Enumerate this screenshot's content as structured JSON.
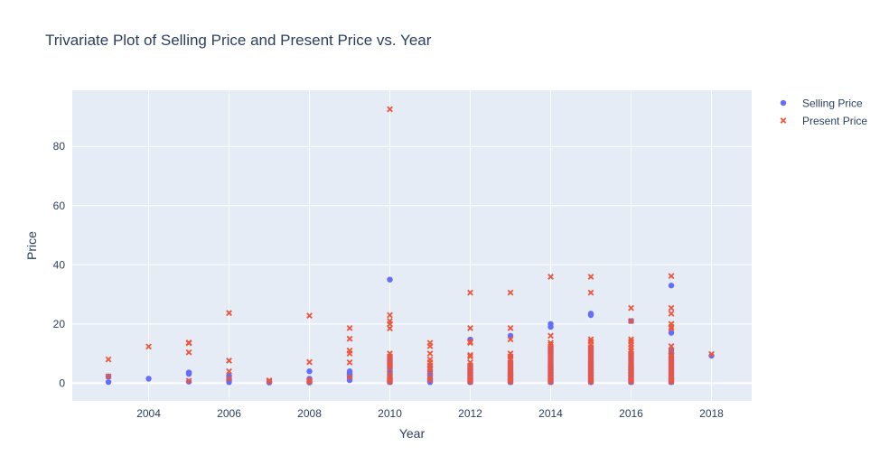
{
  "chart_data": {
    "type": "scatter",
    "title": "Trivariate Plot of Selling Price and Present Price vs. Year",
    "xlabel": "Year",
    "ylabel": "Price",
    "xlim": [
      2002.1,
      2019.0
    ],
    "ylim": [
      -6,
      99
    ],
    "xticks": [
      2004,
      2006,
      2008,
      2010,
      2012,
      2014,
      2016,
      2018
    ],
    "yticks": [
      0,
      20,
      40,
      60,
      80
    ],
    "grid": true,
    "legend_position": "top-right",
    "colors": {
      "plot_bg": "#e5ecf6",
      "grid": "#ffffff",
      "selling": "#636efa",
      "present": "#ef553b"
    },
    "series": [
      {
        "name": "Selling Price",
        "marker": "circle",
        "points": [
          [
            2003,
            0.35
          ],
          [
            2003,
            2.25
          ],
          [
            2004,
            1.5
          ],
          [
            2005,
            0.5
          ],
          [
            2005,
            3.1
          ],
          [
            2005,
            3.5
          ],
          [
            2005,
            3.6
          ],
          [
            2006,
            0.3
          ],
          [
            2006,
            1.0
          ],
          [
            2006,
            1.5
          ],
          [
            2006,
            2.5
          ],
          [
            2007,
            0.2
          ],
          [
            2007,
            0.5
          ],
          [
            2008,
            0.2
          ],
          [
            2008,
            0.5
          ],
          [
            2008,
            1.0
          ],
          [
            2008,
            1.5
          ],
          [
            2008,
            4.0
          ],
          [
            2009,
            1.0
          ],
          [
            2009,
            2.0
          ],
          [
            2009,
            2.5
          ],
          [
            2009,
            3.0
          ],
          [
            2009,
            3.5
          ],
          [
            2009,
            4.0
          ],
          [
            2010,
            0.3
          ],
          [
            2010,
            0.5
          ],
          [
            2010,
            1.0
          ],
          [
            2010,
            1.5
          ],
          [
            2010,
            2.0
          ],
          [
            2010,
            3.0
          ],
          [
            2010,
            4.0
          ],
          [
            2010,
            5.0
          ],
          [
            2010,
            6.0
          ],
          [
            2010,
            7.0
          ],
          [
            2010,
            8.0
          ],
          [
            2010,
            9.0
          ],
          [
            2010,
            35.0
          ],
          [
            2011,
            0.3
          ],
          [
            2011,
            0.5
          ],
          [
            2011,
            1.0
          ],
          [
            2011,
            1.5
          ],
          [
            2011,
            2.5
          ],
          [
            2011,
            3.0
          ],
          [
            2011,
            4.0
          ],
          [
            2011,
            5.5
          ],
          [
            2012,
            0.3
          ],
          [
            2012,
            0.5
          ],
          [
            2012,
            1.0
          ],
          [
            2012,
            1.5
          ],
          [
            2012,
            2.0
          ],
          [
            2012,
            2.5
          ],
          [
            2012,
            3.0
          ],
          [
            2012,
            3.5
          ],
          [
            2012,
            4.0
          ],
          [
            2012,
            4.5
          ],
          [
            2012,
            5.0
          ],
          [
            2012,
            6.0
          ],
          [
            2012,
            14.75
          ],
          [
            2013,
            0.3
          ],
          [
            2013,
            0.5
          ],
          [
            2013,
            1.0
          ],
          [
            2013,
            1.5
          ],
          [
            2013,
            2.0
          ],
          [
            2013,
            2.5
          ],
          [
            2013,
            3.0
          ],
          [
            2013,
            3.5
          ],
          [
            2013,
            4.0
          ],
          [
            2013,
            5.0
          ],
          [
            2013,
            6.0
          ],
          [
            2013,
            7.0
          ],
          [
            2013,
            9.0
          ],
          [
            2013,
            16.0
          ],
          [
            2014,
            0.3
          ],
          [
            2014,
            0.5
          ],
          [
            2014,
            1.0
          ],
          [
            2014,
            1.5
          ],
          [
            2014,
            2.0
          ],
          [
            2014,
            2.5
          ],
          [
            2014,
            3.0
          ],
          [
            2014,
            3.5
          ],
          [
            2014,
            4.0
          ],
          [
            2014,
            4.5
          ],
          [
            2014,
            5.0
          ],
          [
            2014,
            5.5
          ],
          [
            2014,
            6.0
          ],
          [
            2014,
            7.0
          ],
          [
            2014,
            8.0
          ],
          [
            2014,
            9.0
          ],
          [
            2014,
            10.0
          ],
          [
            2014,
            11.0
          ],
          [
            2014,
            12.0
          ],
          [
            2014,
            19.0
          ],
          [
            2014,
            20.0
          ],
          [
            2015,
            0.3
          ],
          [
            2015,
            0.5
          ],
          [
            2015,
            1.0
          ],
          [
            2015,
            1.5
          ],
          [
            2015,
            2.0
          ],
          [
            2015,
            2.5
          ],
          [
            2015,
            3.0
          ],
          [
            2015,
            3.5
          ],
          [
            2015,
            4.0
          ],
          [
            2015,
            4.5
          ],
          [
            2015,
            5.0
          ],
          [
            2015,
            5.5
          ],
          [
            2015,
            6.0
          ],
          [
            2015,
            6.5
          ],
          [
            2015,
            7.0
          ],
          [
            2015,
            8.0
          ],
          [
            2015,
            9.0
          ],
          [
            2015,
            10.0
          ],
          [
            2015,
            11.0
          ],
          [
            2015,
            12.0
          ],
          [
            2015,
            23.0
          ],
          [
            2015,
            23.5
          ],
          [
            2016,
            0.3
          ],
          [
            2016,
            0.5
          ],
          [
            2016,
            1.0
          ],
          [
            2016,
            1.5
          ],
          [
            2016,
            2.0
          ],
          [
            2016,
            2.5
          ],
          [
            2016,
            3.0
          ],
          [
            2016,
            3.5
          ],
          [
            2016,
            4.0
          ],
          [
            2016,
            4.5
          ],
          [
            2016,
            5.0
          ],
          [
            2016,
            5.5
          ],
          [
            2016,
            6.0
          ],
          [
            2016,
            7.0
          ],
          [
            2016,
            8.0
          ],
          [
            2016,
            9.0
          ],
          [
            2016,
            10.0
          ],
          [
            2016,
            21.0
          ],
          [
            2017,
            0.3
          ],
          [
            2017,
            0.5
          ],
          [
            2017,
            1.0
          ],
          [
            2017,
            1.5
          ],
          [
            2017,
            2.0
          ],
          [
            2017,
            3.0
          ],
          [
            2017,
            4.0
          ],
          [
            2017,
            5.0
          ],
          [
            2017,
            6.0
          ],
          [
            2017,
            7.0
          ],
          [
            2017,
            8.0
          ],
          [
            2017,
            9.0
          ],
          [
            2017,
            10.0
          ],
          [
            2017,
            11.0
          ],
          [
            2017,
            17.0
          ],
          [
            2017,
            33.0
          ],
          [
            2018,
            9.25
          ]
        ]
      },
      {
        "name": "Present Price",
        "marker": "x",
        "points": [
          [
            2003,
            2.28
          ],
          [
            2003,
            8.0
          ],
          [
            2004,
            12.35
          ],
          [
            2005,
            0.8
          ],
          [
            2005,
            10.4
          ],
          [
            2005,
            13.5
          ],
          [
            2005,
            13.7
          ],
          [
            2006,
            1.5
          ],
          [
            2006,
            4.0
          ],
          [
            2006,
            7.6
          ],
          [
            2006,
            23.7
          ],
          [
            2007,
            0.6
          ],
          [
            2007,
            0.9
          ],
          [
            2008,
            0.5
          ],
          [
            2008,
            1.0
          ],
          [
            2008,
            7.1
          ],
          [
            2008,
            22.8
          ],
          [
            2009,
            2.0
          ],
          [
            2009,
            7.0
          ],
          [
            2009,
            10.0
          ],
          [
            2009,
            11.0
          ],
          [
            2009,
            15.0
          ],
          [
            2009,
            18.6
          ],
          [
            2010,
            0.5
          ],
          [
            2010,
            1.0
          ],
          [
            2010,
            2.0
          ],
          [
            2010,
            3.0
          ],
          [
            2010,
            5.0
          ],
          [
            2010,
            6.0
          ],
          [
            2010,
            7.0
          ],
          [
            2010,
            8.0
          ],
          [
            2010,
            9.0
          ],
          [
            2010,
            10.0
          ],
          [
            2010,
            18.5
          ],
          [
            2010,
            20.0
          ],
          [
            2010,
            21.0
          ],
          [
            2010,
            23.0
          ],
          [
            2010,
            92.6
          ],
          [
            2011,
            1.0
          ],
          [
            2011,
            2.0
          ],
          [
            2011,
            4.0
          ],
          [
            2011,
            5.0
          ],
          [
            2011,
            6.0
          ],
          [
            2011,
            7.0
          ],
          [
            2011,
            8.0
          ],
          [
            2011,
            10.0
          ],
          [
            2011,
            12.5
          ],
          [
            2011,
            13.6
          ],
          [
            2012,
            0.5
          ],
          [
            2012,
            1.0
          ],
          [
            2012,
            2.0
          ],
          [
            2012,
            3.0
          ],
          [
            2012,
            4.0
          ],
          [
            2012,
            5.0
          ],
          [
            2012,
            6.0
          ],
          [
            2012,
            7.0
          ],
          [
            2012,
            9.0
          ],
          [
            2012,
            9.5
          ],
          [
            2012,
            13.6
          ],
          [
            2012,
            14.0
          ],
          [
            2012,
            18.6
          ],
          [
            2012,
            30.6
          ],
          [
            2013,
            0.5
          ],
          [
            2013,
            1.0
          ],
          [
            2013,
            2.0
          ],
          [
            2013,
            3.0
          ],
          [
            2013,
            4.0
          ],
          [
            2013,
            5.0
          ],
          [
            2013,
            6.0
          ],
          [
            2013,
            7.0
          ],
          [
            2013,
            8.0
          ],
          [
            2013,
            9.0
          ],
          [
            2013,
            10.0
          ],
          [
            2013,
            14.8
          ],
          [
            2013,
            18.6
          ],
          [
            2013,
            30.6
          ],
          [
            2014,
            0.5
          ],
          [
            2014,
            1.0
          ],
          [
            2014,
            2.0
          ],
          [
            2014,
            3.0
          ],
          [
            2014,
            4.0
          ],
          [
            2014,
            5.0
          ],
          [
            2014,
            6.0
          ],
          [
            2014,
            7.0
          ],
          [
            2014,
            8.0
          ],
          [
            2014,
            9.0
          ],
          [
            2014,
            10.0
          ],
          [
            2014,
            11.0
          ],
          [
            2014,
            12.0
          ],
          [
            2014,
            13.0
          ],
          [
            2014,
            13.6
          ],
          [
            2014,
            16.0
          ],
          [
            2014,
            35.96
          ],
          [
            2015,
            0.5
          ],
          [
            2015,
            1.0
          ],
          [
            2015,
            2.0
          ],
          [
            2015,
            3.0
          ],
          [
            2015,
            4.0
          ],
          [
            2015,
            5.0
          ],
          [
            2015,
            6.0
          ],
          [
            2015,
            7.0
          ],
          [
            2015,
            8.0
          ],
          [
            2015,
            9.0
          ],
          [
            2015,
            10.0
          ],
          [
            2015,
            11.0
          ],
          [
            2015,
            12.0
          ],
          [
            2015,
            13.0
          ],
          [
            2015,
            14.0
          ],
          [
            2015,
            14.8
          ],
          [
            2015,
            30.6
          ],
          [
            2015,
            35.96
          ],
          [
            2016,
            0.5
          ],
          [
            2016,
            1.0
          ],
          [
            2016,
            2.0
          ],
          [
            2016,
            3.0
          ],
          [
            2016,
            4.0
          ],
          [
            2016,
            5.0
          ],
          [
            2016,
            6.0
          ],
          [
            2016,
            7.0
          ],
          [
            2016,
            8.0
          ],
          [
            2016,
            9.0
          ],
          [
            2016,
            10.0
          ],
          [
            2016,
            11.0
          ],
          [
            2016,
            12.0
          ],
          [
            2016,
            13.0
          ],
          [
            2016,
            14.0
          ],
          [
            2016,
            14.8
          ],
          [
            2016,
            21.0
          ],
          [
            2016,
            25.4
          ],
          [
            2017,
            0.5
          ],
          [
            2017,
            1.0
          ],
          [
            2017,
            2.0
          ],
          [
            2017,
            3.0
          ],
          [
            2017,
            4.0
          ],
          [
            2017,
            5.0
          ],
          [
            2017,
            6.0
          ],
          [
            2017,
            7.0
          ],
          [
            2017,
            8.0
          ],
          [
            2017,
            9.0
          ],
          [
            2017,
            9.5
          ],
          [
            2017,
            11.0
          ],
          [
            2017,
            12.5
          ],
          [
            2017,
            18.5
          ],
          [
            2017,
            19.0
          ],
          [
            2017,
            20.0
          ],
          [
            2017,
            23.5
          ],
          [
            2017,
            25.4
          ],
          [
            2017,
            36.2
          ],
          [
            2018,
            9.83
          ]
        ]
      }
    ]
  }
}
